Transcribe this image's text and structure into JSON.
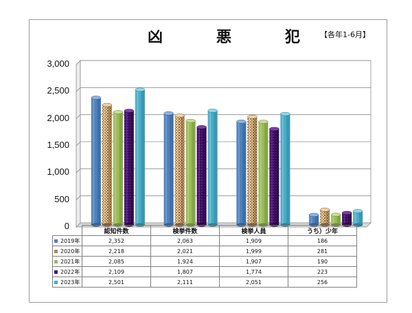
{
  "chart_data": {
    "type": "bar",
    "title": "凶　悪　犯",
    "subtitle": "【各年1-6月】",
    "categories": [
      "認知件数",
      "検挙件数",
      "検挙人員",
      "うち）少年"
    ],
    "series": [
      {
        "name": "2019年",
        "values": [
          2352,
          2063,
          1909,
          186
        ],
        "color": "#4f81bd"
      },
      {
        "name": "2020年",
        "values": [
          2218,
          2021,
          1999,
          281
        ],
        "color": "#c8a06a"
      },
      {
        "name": "2021年",
        "values": [
          2085,
          1924,
          1907,
          190
        ],
        "color": "#9bbb59"
      },
      {
        "name": "2022年",
        "values": [
          2109,
          1807,
          1774,
          223
        ],
        "color": "#4b1373"
      },
      {
        "name": "2023年",
        "values": [
          2501,
          2111,
          2051,
          256
        ],
        "color": "#4bacc6"
      }
    ],
    "yticks": [
      "3,000",
      "2,500",
      "2,000",
      "1,500",
      "1,000",
      "500",
      "0"
    ],
    "table_values": [
      [
        "2,352",
        "2,063",
        "1,909",
        "186"
      ],
      [
        "2,218",
        "2,021",
        "1,999",
        "281"
      ],
      [
        "2,085",
        "1,924",
        "1,907",
        "190"
      ],
      [
        "2,109",
        "1,807",
        "1,774",
        "223"
      ],
      [
        "2,501",
        "2,111",
        "2,051",
        "256"
      ]
    ],
    "ylim": [
      0,
      3000
    ],
    "grid": true,
    "legend": "data-table"
  }
}
